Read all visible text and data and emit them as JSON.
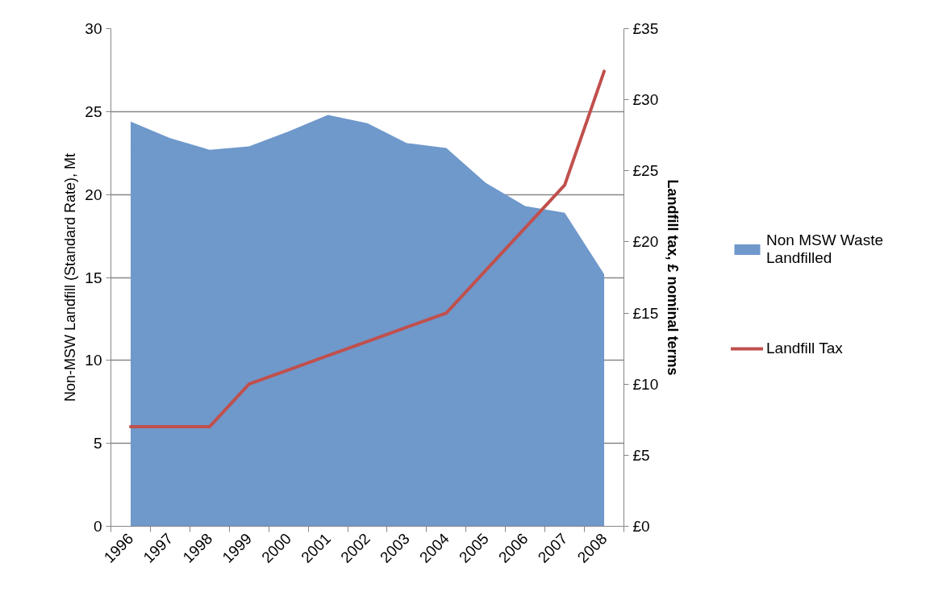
{
  "chart_data": {
    "type": "area",
    "categories": [
      "1996",
      "1997",
      "1998",
      "1999",
      "2000",
      "2001",
      "2002",
      "2003",
      "2004",
      "2005",
      "2006",
      "2007",
      "2008"
    ],
    "ylabel": "Non-MSW Landfill (Standard Rate), Mt",
    "y2label": "Landfill tax, £ nominal terms",
    "ylim": [
      0,
      30
    ],
    "yticks": [
      0,
      5,
      10,
      15,
      20,
      25,
      30
    ],
    "y2lim": [
      0,
      35
    ],
    "y2ticks": [
      {
        "value": 0,
        "label": "£0"
      },
      {
        "value": 5,
        "label": "£5"
      },
      {
        "value": 10,
        "label": "£10"
      },
      {
        "value": 15,
        "label": "£15"
      },
      {
        "value": 20,
        "label": "£20"
      },
      {
        "value": 25,
        "label": "£25"
      },
      {
        "value": 30,
        "label": "£30"
      },
      {
        "value": 35,
        "label": "£35"
      }
    ],
    "grid": "y",
    "legend": "right",
    "series": [
      {
        "name": "Non MSW Waste Landfilled",
        "color": "#6f98cb",
        "values": [
          24.4,
          23.4,
          22.7,
          22.9,
          23.8,
          24.8,
          24.3,
          23.1,
          22.8,
          20.7,
          19.3,
          18.9,
          15.2
        ]
      },
      {
        "name": "Landfill Tax",
        "type": "line",
        "axis": "y2",
        "color": "#c0504d",
        "values": [
          7,
          7,
          7,
          10,
          11,
          12,
          13,
          14,
          15,
          18,
          21,
          24,
          32
        ]
      }
    ]
  }
}
